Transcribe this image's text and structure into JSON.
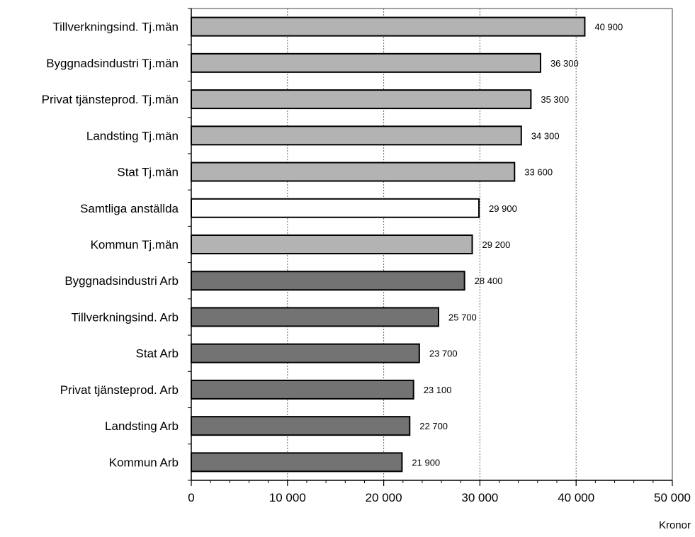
{
  "chart_data": {
    "type": "bar",
    "orientation": "horizontal",
    "title": "",
    "xlabel": "Kronor",
    "ylabel": "",
    "xlim": [
      0,
      50000
    ],
    "x_ticks": [
      0,
      10000,
      20000,
      30000,
      40000,
      50000
    ],
    "x_tick_labels": [
      "0",
      "10 000",
      "20 000",
      "30 000",
      "40 000",
      "50 000"
    ],
    "grid": "vertical-dotted",
    "legend": "none",
    "categories": [
      "Tillverkningsind. Tj.män",
      "Byggnadsindustri Tj.män",
      "Privat tjänsteprod. Tj.män",
      "Landsting Tj.män",
      "Stat Tj.män",
      "Samtliga anställda",
      "Kommun Tj.män",
      "Byggnadsindustri Arb",
      "Tillverkningsind. Arb",
      "Stat Arb",
      "Privat tjänsteprod. Arb",
      "Landsting Arb",
      "Kommun Arb"
    ],
    "values": [
      40900,
      36300,
      35300,
      34300,
      33600,
      29900,
      29200,
      28400,
      25700,
      23700,
      23100,
      22700,
      21900
    ],
    "value_labels": [
      "40 900",
      "36 300",
      "35 300",
      "34 300",
      "33 600",
      "29 900",
      "29 200",
      "28 400",
      "25 700",
      "23 700",
      "23 100",
      "22 700",
      "21 900"
    ],
    "groups": [
      "tjm",
      "tjm",
      "tjm",
      "tjm",
      "tjm",
      "all",
      "tjm",
      "arb",
      "arb",
      "arb",
      "arb",
      "arb",
      "arb"
    ],
    "colors": {
      "tjm": "#b3b3b3",
      "arb": "#737373",
      "all": "#ffffff",
      "bar_border": "#000000",
      "axis": "#000000",
      "frame": "#808080",
      "grid": "#666666"
    }
  }
}
